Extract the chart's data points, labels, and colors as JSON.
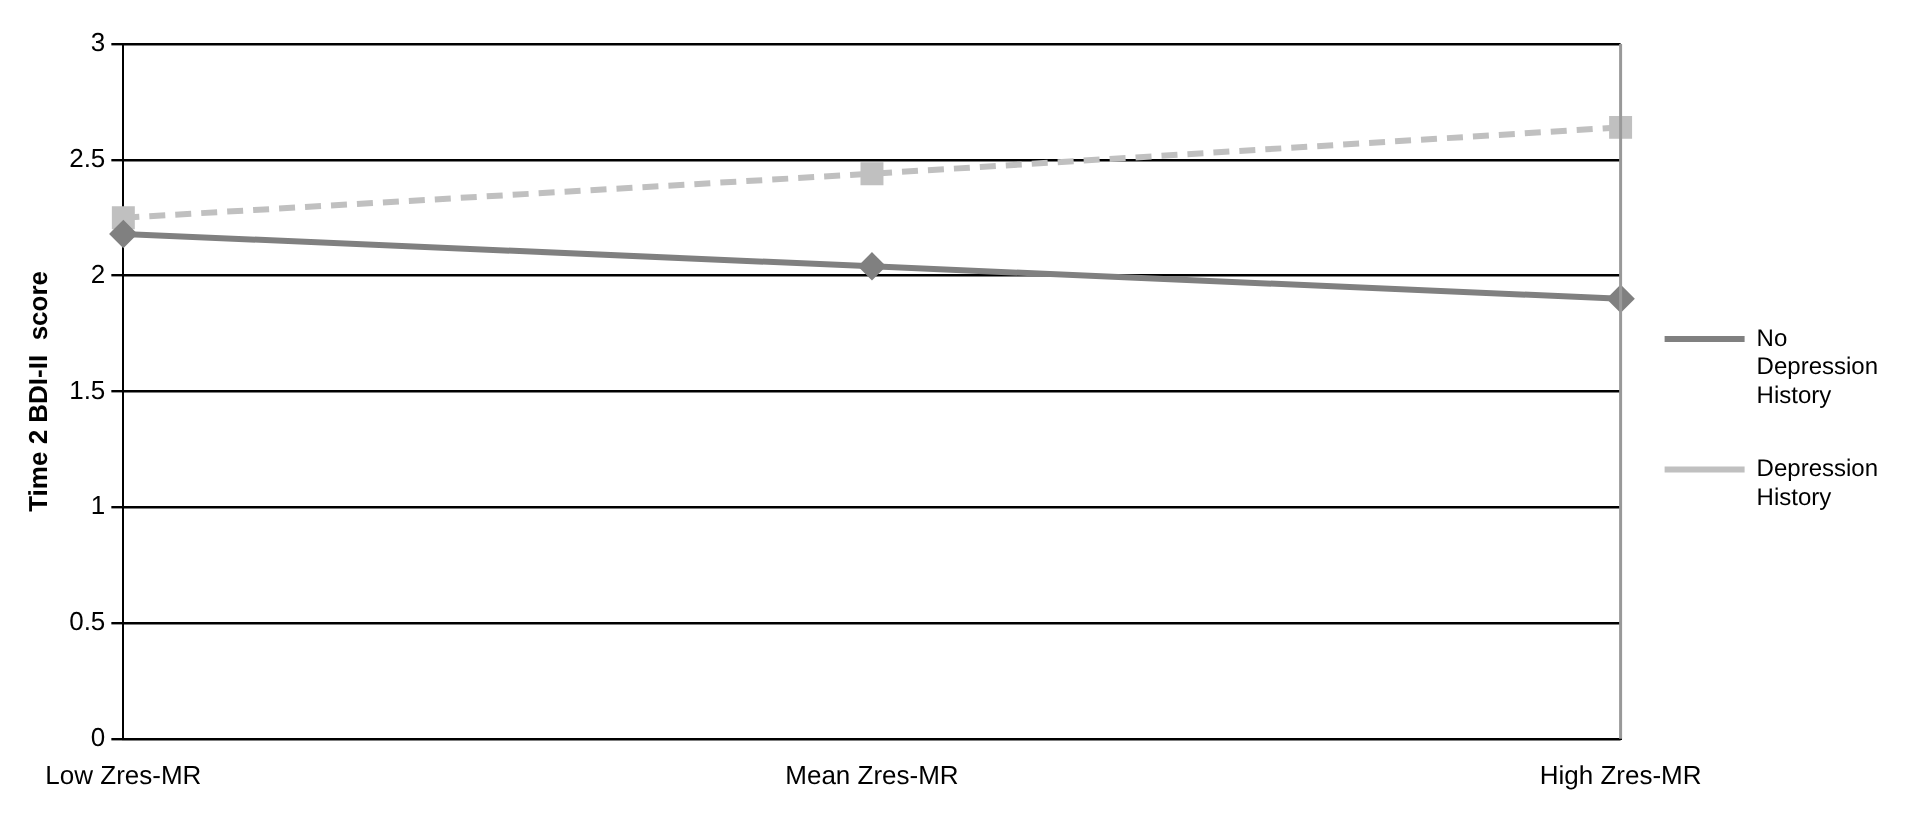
{
  "chart_data": {
    "type": "line",
    "ylabel": "Time 2 BDI-II  score",
    "categories": [
      "Low Zres-MR",
      "Mean Zres-MR",
      "High Zres-MR"
    ],
    "series": [
      {
        "name": "No Depression History",
        "color": "#808080",
        "values": [
          2.18,
          2.04,
          1.9
        ],
        "marker": "diamond",
        "line_style": "solid"
      },
      {
        "name": "Depression History",
        "color": "#c0c0c0",
        "values": [
          2.25,
          2.44,
          2.64
        ],
        "marker": "square",
        "line_style": "dashed"
      }
    ],
    "ylim": [
      0,
      3
    ],
    "yticks": [
      0,
      0.5,
      1,
      1.5,
      2,
      2.5,
      3
    ],
    "grid": "y",
    "legend": "right"
  }
}
